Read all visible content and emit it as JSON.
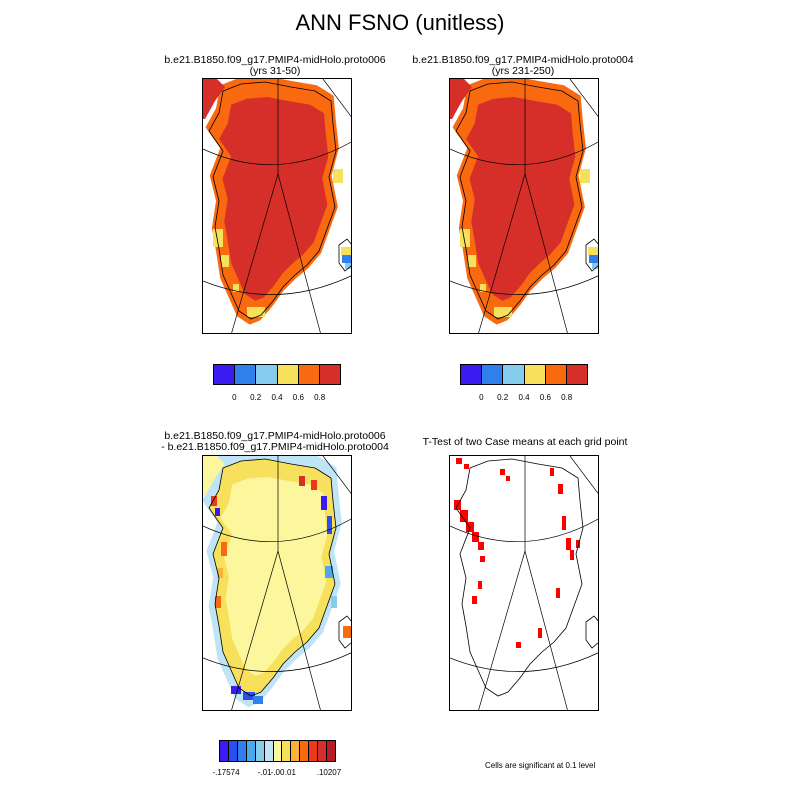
{
  "main_title": "ANN FSNO (unitless)",
  "panels": {
    "p1": {
      "line1": "b.e21.B1850.f09_g17.PMIP4-midHolo.proto006",
      "line2": "(yrs 31-50)"
    },
    "p2": {
      "line1": "b.e21.B1850.f09_g17.PMIP4-midHolo.proto004",
      "line2": "(yrs 231-250)"
    },
    "p3": {
      "line1": "b.e21.B1850.f09_g17.PMIP4-midHolo.proto006",
      "line2": "- b.e21.B1850.f09_g17.PMIP4-midHolo.proto004"
    },
    "p4": {
      "line1": "T-Test of two Case means at each grid point"
    }
  },
  "colorbars": {
    "abs": {
      "colors": [
        "#3a1cf2",
        "#2f80ea",
        "#85cbee",
        "#f7e05b",
        "#f96a10",
        "#d62f29"
      ],
      "labels": [
        "0",
        "0.2",
        "0.4",
        "0.6",
        "0.8"
      ]
    },
    "diff": {
      "colors": [
        "#3a1cf2",
        "#2a4ff0",
        "#2f80ea",
        "#4da8ee",
        "#85cbee",
        "#bfe4f5",
        "#fcf79c",
        "#f7e05b",
        "#f9b23a",
        "#f96a10",
        "#ea3a1d",
        "#d62f29",
        "#b81d22"
      ],
      "labels": [
        "-.17574",
        "-.01",
        "-.00",
        ".01",
        ".10207"
      ]
    }
  },
  "significance_note": "Cells are significant at 0.1 level",
  "chart_data": [
    {
      "type": "heatmap",
      "title": "b.e21.B1850.f09_g17.PMIP4-midHolo.proto006 (yrs 31-50)",
      "variable": "FSNO",
      "region": "Greenland",
      "levels": [
        0,
        0.2,
        0.4,
        0.6,
        0.8
      ],
      "dominant_value_range": [
        0.8,
        1.0
      ],
      "margin_value_range": [
        0.4,
        0.8
      ]
    },
    {
      "type": "heatmap",
      "title": "b.e21.B1850.f09_g17.PMIP4-midHolo.proto004 (yrs 231-250)",
      "variable": "FSNO",
      "region": "Greenland",
      "levels": [
        0,
        0.2,
        0.4,
        0.6,
        0.8
      ],
      "dominant_value_range": [
        0.8,
        1.0
      ],
      "margin_value_range": [
        0.4,
        0.8
      ]
    },
    {
      "type": "heatmap",
      "title": "b.e21.B1850.f09_g17.PMIP4-midHolo.proto006 - b.e21.B1850.f09_g17.PMIP4-midHolo.proto004",
      "variable": "FSNO difference",
      "region": "Greenland",
      "min": -0.17574,
      "max": 0.10207,
      "interior_value_range": [
        -0.0,
        0.01
      ]
    },
    {
      "type": "heatmap",
      "title": "T-Test of two Case means at each grid point",
      "region": "Greenland",
      "significance_level": 0.1,
      "marked_color": "#ff0000"
    }
  ]
}
